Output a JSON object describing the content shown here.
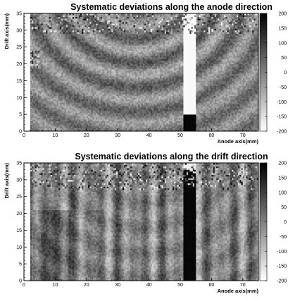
{
  "chart_data": [
    {
      "type": "heatmap",
      "title": "Systematic deviations along the anode direction",
      "xlabel": "Anode axis(mm)",
      "ylabel": "Drift axis(mm)",
      "xlim": [
        0,
        75
      ],
      "ylim": [
        0,
        35
      ],
      "x_ticks": [
        0,
        10,
        20,
        30,
        40,
        50,
        60,
        70
      ],
      "y_ticks": [
        0,
        5,
        10,
        15,
        20,
        25,
        30,
        35
      ],
      "colorbar": {
        "range": [
          -200,
          200
        ],
        "ticks": [
          200,
          150,
          100,
          50,
          0,
          -50,
          -100,
          -150,
          -200
        ],
        "colormap": "grayscale (black high, white low)"
      },
      "features": {
        "pattern": "concentric rings centered near the top middle of the detector",
        "saturated_white_region_x": [
          51,
          55
        ]
      }
    },
    {
      "type": "heatmap",
      "title": "Systematic deviations along the drift direction",
      "xlabel": "Anode axis(mm)",
      "ylabel": "Drift axis(mm)",
      "xlim": [
        0,
        75
      ],
      "ylim": [
        0,
        35
      ],
      "x_ticks": [
        0,
        10,
        20,
        30,
        40,
        50,
        60,
        70
      ],
      "y_ticks": [
        0,
        5,
        10,
        15,
        20,
        25,
        30,
        35
      ],
      "colorbar": {
        "range": [
          -200,
          200
        ],
        "ticks": [
          200,
          150,
          100,
          50,
          0,
          -50,
          -100,
          -150,
          -200
        ],
        "colormap": "grayscale (black high, white low)"
      },
      "features": {
        "pattern": "vertical stripes along the anode axis with faint rings",
        "step_near_drift": 21,
        "black_band_x": [
          51,
          55
        ]
      }
    }
  ]
}
